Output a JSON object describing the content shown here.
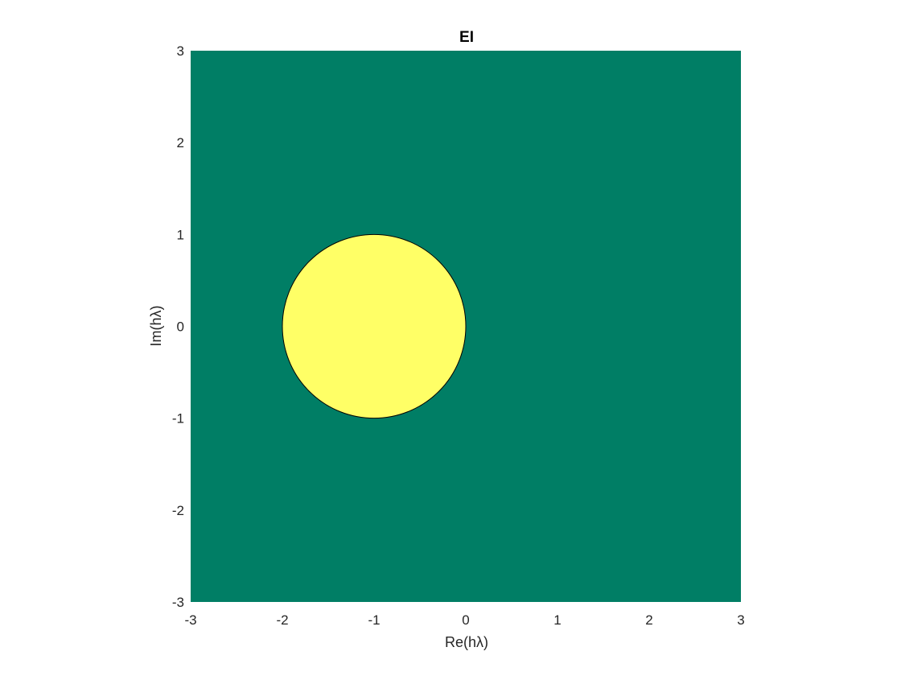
{
  "chart_data": {
    "type": "area",
    "title": "EI",
    "xlabel": "Re(hλ)",
    "ylabel": "Im(hλ)",
    "xlim": [
      -3,
      3
    ],
    "ylim": [
      -3,
      3
    ],
    "x_ticks": [
      -3,
      -2,
      -1,
      0,
      1,
      2,
      3
    ],
    "y_ticks": [
      -3,
      -2,
      -1,
      0,
      1,
      2,
      3
    ],
    "x_tick_labels": [
      "-3",
      "-2",
      "-1",
      "0",
      "1",
      "2",
      "3"
    ],
    "y_tick_labels": [
      "-3",
      "-2",
      "-1",
      "0",
      "1",
      "2",
      "3"
    ],
    "grid": false,
    "regions": [
      {
        "shape": "rectangle",
        "x": [
          -3,
          3
        ],
        "y": [
          -3,
          3
        ],
        "color": "#007e65"
      },
      {
        "shape": "circle",
        "center": [
          -1,
          0
        ],
        "radius": 1,
        "color": "#ffff66",
        "edge_color": "#000000"
      }
    ]
  }
}
